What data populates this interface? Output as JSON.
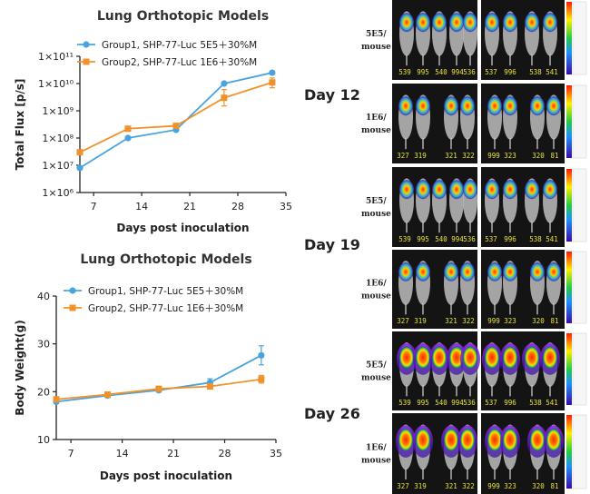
{
  "chart_data": [
    {
      "type": "line",
      "title": "Lung Orthotopic Models",
      "xlabel": "Days post inoculation",
      "ylabel": "Total Flux [p/s]",
      "yscale": "log",
      "xlim": [
        5,
        35
      ],
      "ylim": [
        1000000,
        100000000000
      ],
      "x_ticks": [
        7,
        14,
        21,
        28,
        35
      ],
      "y_ticks": [
        {
          "value": 1000000,
          "label": "1×10⁶"
        },
        {
          "value": 10000000,
          "label": "1×10⁷"
        },
        {
          "value": 100000000,
          "label": "1×10⁸"
        },
        {
          "value": 1000000000,
          "label": "1×10⁹"
        },
        {
          "value": 10000000000,
          "label": "1×10¹⁰"
        },
        {
          "value": 100000000000,
          "label": "1×10¹¹"
        }
      ],
      "legend_position": "top-left",
      "series": [
        {
          "name": "Group1, SHP-77-Luc 5E5＋30%M",
          "color": "#4aa3df",
          "marker": "circle",
          "x": [
            5,
            12,
            19,
            26,
            33
          ],
          "y": [
            8000000,
            100000000,
            200000000,
            10000000000,
            25000000000
          ]
        },
        {
          "name": "Group2, SHP-77-Luc 1E6＋30%M",
          "color": "#f0922b",
          "marker": "square",
          "x": [
            5,
            12,
            19,
            26,
            33
          ],
          "y": [
            30000000,
            220000000,
            280000000,
            3000000000,
            11000000000
          ],
          "err": [
            [
              0,
              0
            ],
            [
              0,
              0
            ],
            [
              0,
              0
            ],
            [
              1500000000,
              3000000000
            ],
            [
              4000000000,
              5000000000
            ]
          ]
        }
      ]
    },
    {
      "type": "line",
      "title": "Lung Orthotopic Models",
      "xlabel": "Days post inoculation",
      "ylabel": "Body Weight(g)",
      "yscale": "linear",
      "xlim": [
        5,
        35
      ],
      "ylim": [
        10,
        40
      ],
      "x_ticks": [
        7,
        14,
        21,
        28,
        35
      ],
      "y_ticks": [
        {
          "value": 10,
          "label": "10"
        },
        {
          "value": 20,
          "label": "20"
        },
        {
          "value": 30,
          "label": "30"
        },
        {
          "value": 40,
          "label": "40"
        }
      ],
      "legend_position": "top-left",
      "series": [
        {
          "name": "Group1, SHP-77-Luc 5E5＋30%M",
          "color": "#4aa3df",
          "marker": "circle",
          "x": [
            5,
            12,
            19,
            26,
            33
          ],
          "y": [
            17.9,
            19.2,
            20.3,
            21.9,
            27.6
          ],
          "err": [
            0.3,
            0.3,
            0.4,
            0.8,
            2.0
          ]
        },
        {
          "name": "Group2, SHP-77-Luc 1E6＋30%M",
          "color": "#f0922b",
          "marker": "square",
          "x": [
            5,
            12,
            19,
            26,
            33
          ],
          "y": [
            18.4,
            19.4,
            20.6,
            21.1,
            22.6
          ],
          "err": [
            0.3,
            0.3,
            0.4,
            0.5,
            0.8
          ]
        }
      ]
    }
  ],
  "imaging": {
    "days": [
      "Day 12",
      "Day 19",
      "Day 26"
    ],
    "row_labels": [
      [
        "5E5/",
        "mouse"
      ],
      [
        "1E6/",
        "mouse"
      ]
    ],
    "mouse_ids": [
      [
        "539",
        "995",
        "540",
        "994",
        "536",
        "537",
        "996",
        "538",
        "541"
      ],
      [
        "327",
        "319",
        "321",
        "322",
        "999",
        "323",
        "320",
        "81"
      ]
    ]
  }
}
